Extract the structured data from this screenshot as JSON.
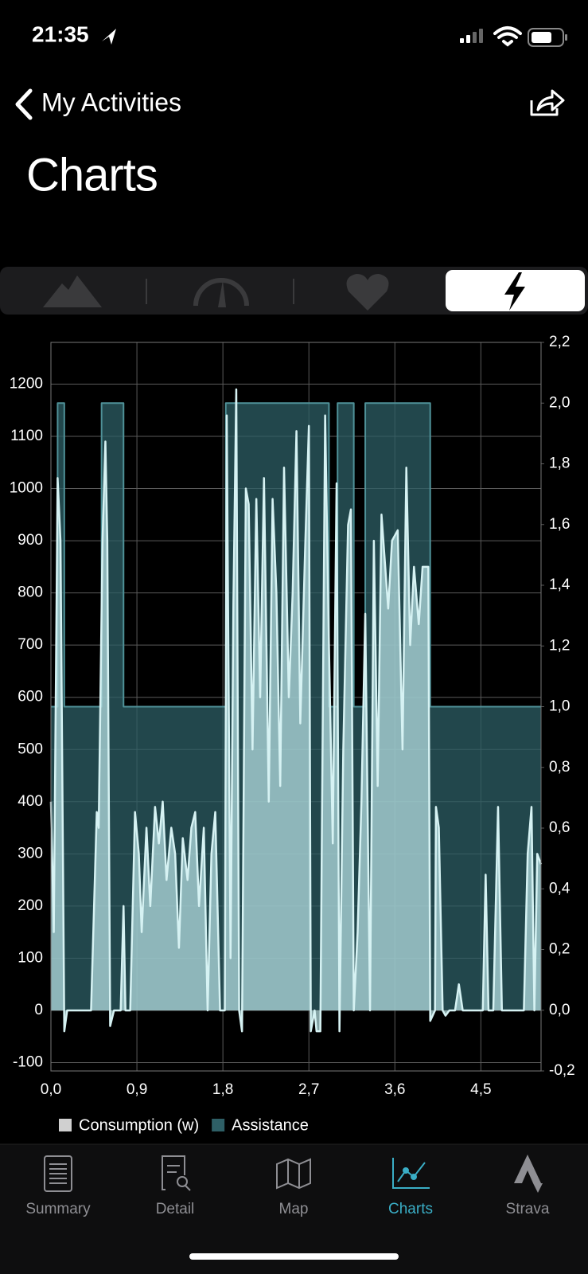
{
  "status_bar": {
    "time": "21:35"
  },
  "nav": {
    "back": "My Activities"
  },
  "header": {
    "title": "Charts"
  },
  "chart_data": {
    "type": "area",
    "xlim": [
      0,
      5.13
    ],
    "xticks": [
      {
        "value": 0,
        "label": "0,0"
      },
      {
        "value": 0.9,
        "label": "0,9"
      },
      {
        "value": 1.8,
        "label": "1,8"
      },
      {
        "value": 2.7,
        "label": "2,7"
      },
      {
        "value": 3.6,
        "label": "3,6"
      },
      {
        "value": 4.5,
        "label": "4,5"
      }
    ],
    "ylim": [
      -116,
      1280
    ],
    "yticks": [
      -100,
      0,
      100,
      200,
      300,
      400,
      500,
      600,
      700,
      800,
      900,
      1000,
      1100,
      1200
    ],
    "y2lim": [
      -0.2,
      2.2
    ],
    "y2ticks": [
      {
        "value": -0.2,
        "label": "-0,2"
      },
      {
        "value": 0,
        "label": "0,0"
      },
      {
        "value": 0.2,
        "label": "0,2"
      },
      {
        "value": 0.4,
        "label": "0,4"
      },
      {
        "value": 0.6,
        "label": "0,6"
      },
      {
        "value": 0.8,
        "label": "0,8"
      },
      {
        "value": 1,
        "label": "1,0"
      },
      {
        "value": 1.2,
        "label": "1,2"
      },
      {
        "value": 1.4,
        "label": "1,4"
      },
      {
        "value": 1.6,
        "label": "1,6"
      },
      {
        "value": 1.8,
        "label": "1,8"
      },
      {
        "value": 2,
        "label": "2,0"
      },
      {
        "value": 2.2,
        "label": "2,2"
      }
    ],
    "grid": true,
    "series": [
      {
        "name": "Assistance",
        "color": "#2e5f66",
        "axis": "y2",
        "x": [
          0,
          0.07,
          0.07,
          0.14,
          0.14,
          0.53,
          0.53,
          0.76,
          0.76,
          1.83,
          1.83,
          2.91,
          2.91,
          3.0,
          3.0,
          3.17,
          3.17,
          3.29,
          3.29,
          3.97,
          3.97,
          5.13
        ],
        "values": [
          1,
          1,
          2,
          2,
          1,
          1,
          2,
          2,
          1,
          1,
          2,
          2,
          1,
          1,
          2,
          2,
          1,
          1,
          2,
          2,
          1,
          1
        ]
      },
      {
        "name": "Consumption (w)",
        "color": "#b9e2e5",
        "axis": "y",
        "x": [
          0.0,
          0.03,
          0.07,
          0.1,
          0.14,
          0.17,
          0.42,
          0.48,
          0.5,
          0.54,
          0.57,
          0.59,
          0.62,
          0.66,
          0.73,
          0.76,
          0.78,
          0.83,
          0.88,
          0.92,
          0.95,
          1.0,
          1.04,
          1.09,
          1.13,
          1.17,
          1.21,
          1.26,
          1.3,
          1.34,
          1.38,
          1.43,
          1.47,
          1.51,
          1.55,
          1.6,
          1.64,
          1.68,
          1.72,
          1.77,
          1.82,
          1.84,
          1.88,
          1.91,
          1.94,
          1.97,
          2.0,
          2.04,
          2.07,
          2.11,
          2.15,
          2.19,
          2.23,
          2.28,
          2.32,
          2.36,
          2.4,
          2.44,
          2.49,
          2.53,
          2.57,
          2.61,
          2.66,
          2.7,
          2.72,
          2.76,
          2.78,
          2.82,
          2.87,
          2.91,
          2.95,
          2.99,
          3.02,
          3.06,
          3.11,
          3.14,
          3.17,
          3.21,
          3.25,
          3.29,
          3.34,
          3.38,
          3.42,
          3.46,
          3.53,
          3.57,
          3.63,
          3.68,
          3.72,
          3.76,
          3.8,
          3.85,
          3.89,
          3.95,
          3.97,
          4.02,
          4.03,
          4.06,
          4.1,
          4.13,
          4.17,
          4.23,
          4.27,
          4.31,
          4.52,
          4.55,
          4.58,
          4.63,
          4.68,
          4.72,
          4.95,
          4.99,
          5.03,
          5.06,
          5.09,
          5.13
        ],
        "values": [
          400,
          150,
          1020,
          900,
          -40,
          0,
          0,
          380,
          350,
          900,
          1090,
          900,
          -30,
          0,
          0,
          200,
          0,
          0,
          380,
          300,
          150,
          350,
          200,
          390,
          320,
          400,
          250,
          350,
          300,
          120,
          330,
          250,
          350,
          380,
          200,
          350,
          0,
          300,
          380,
          0,
          0,
          1140,
          100,
          780,
          1190,
          0,
          -40,
          1000,
          970,
          500,
          980,
          600,
          1020,
          400,
          980,
          800,
          430,
          1040,
          600,
          800,
          1110,
          550,
          880,
          1120,
          -40,
          0,
          -40,
          -40,
          1140,
          700,
          320,
          1010,
          -40,
          500,
          930,
          960,
          0,
          150,
          400,
          760,
          0,
          900,
          430,
          950,
          770,
          900,
          920,
          500,
          1040,
          700,
          850,
          740,
          850,
          850,
          -20,
          0,
          390,
          350,
          0,
          -10,
          0,
          0,
          50,
          0,
          0,
          260,
          0,
          0,
          390,
          0,
          0,
          300,
          390,
          0,
          300,
          280
        ]
      }
    ]
  },
  "tab_bar": {
    "tabs": [
      "Summary",
      "Detail",
      "Map",
      "Charts",
      "Strava"
    ],
    "active": 3
  }
}
